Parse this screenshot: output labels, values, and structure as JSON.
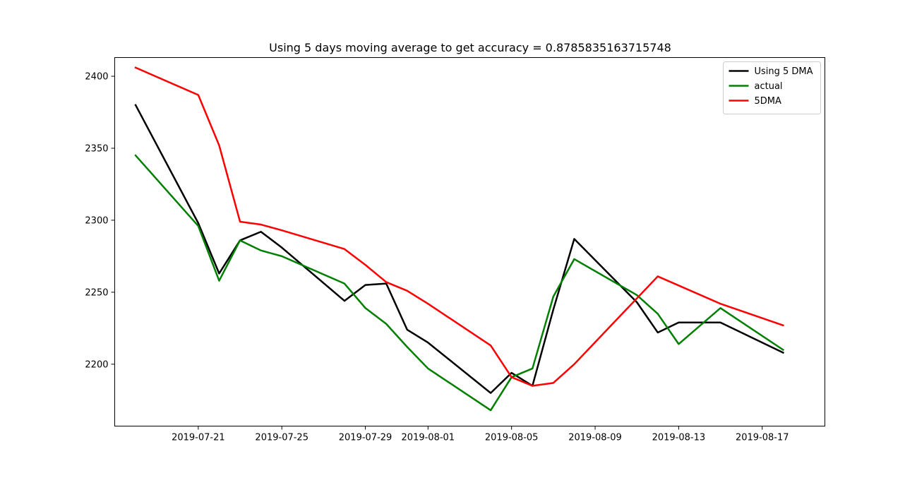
{
  "chart_data": {
    "type": "line",
    "title": "Using 5 days moving average to get accuracy = 0.8785835163715748",
    "xlabel": "",
    "ylabel": "",
    "xlim": [
      "2019-07-17",
      "2019-08-20"
    ],
    "ylim": [
      2157,
      2413
    ],
    "x_ticks": [
      "2019-07-21",
      "2019-07-25",
      "2019-07-29",
      "2019-08-01",
      "2019-08-05",
      "2019-08-09",
      "2019-08-13",
      "2019-08-17"
    ],
    "y_ticks": [
      2200,
      2250,
      2300,
      2350,
      2400
    ],
    "legend_position": "top-right",
    "grid": false,
    "series": [
      {
        "name": "Using 5 DMA",
        "color": "#000000",
        "points": [
          {
            "x": "2019-07-18",
            "y": 2380
          },
          {
            "x": "2019-07-21",
            "y": 2298
          },
          {
            "x": "2019-07-22",
            "y": 2263
          },
          {
            "x": "2019-07-23",
            "y": 2286
          },
          {
            "x": "2019-07-24",
            "y": 2292
          },
          {
            "x": "2019-07-25",
            "y": 2281
          },
          {
            "x": "2019-07-28",
            "y": 2244
          },
          {
            "x": "2019-07-29",
            "y": 2255
          },
          {
            "x": "2019-07-30",
            "y": 2256
          },
          {
            "x": "2019-07-31",
            "y": 2224
          },
          {
            "x": "2019-08-01",
            "y": 2215
          },
          {
            "x": "2019-08-04",
            "y": 2180
          },
          {
            "x": "2019-08-05",
            "y": 2194
          },
          {
            "x": "2019-08-06",
            "y": 2185
          },
          {
            "x": "2019-08-07",
            "y": 2238
          },
          {
            "x": "2019-08-08",
            "y": 2287
          },
          {
            "x": "2019-08-11",
            "y": 2243
          },
          {
            "x": "2019-08-12",
            "y": 2222
          },
          {
            "x": "2019-08-13",
            "y": 2229
          },
          {
            "x": "2019-08-15",
            "y": 2229
          },
          {
            "x": "2019-08-18",
            "y": 2208
          }
        ]
      },
      {
        "name": "actual",
        "color": "#008000",
        "points": [
          {
            "x": "2019-07-18",
            "y": 2345
          },
          {
            "x": "2019-07-21",
            "y": 2296
          },
          {
            "x": "2019-07-22",
            "y": 2258
          },
          {
            "x": "2019-07-23",
            "y": 2286
          },
          {
            "x": "2019-07-24",
            "y": 2279
          },
          {
            "x": "2019-07-25",
            "y": 2275
          },
          {
            "x": "2019-07-28",
            "y": 2256
          },
          {
            "x": "2019-07-29",
            "y": 2239
          },
          {
            "x": "2019-07-30",
            "y": 2228
          },
          {
            "x": "2019-07-31",
            "y": 2212
          },
          {
            "x": "2019-08-01",
            "y": 2197
          },
          {
            "x": "2019-08-04",
            "y": 2168
          },
          {
            "x": "2019-08-05",
            "y": 2191
          },
          {
            "x": "2019-08-06",
            "y": 2197
          },
          {
            "x": "2019-08-07",
            "y": 2247
          },
          {
            "x": "2019-08-08",
            "y": 2273
          },
          {
            "x": "2019-08-11",
            "y": 2248
          },
          {
            "x": "2019-08-12",
            "y": 2235
          },
          {
            "x": "2019-08-13",
            "y": 2214
          },
          {
            "x": "2019-08-15",
            "y": 2239
          },
          {
            "x": "2019-08-18",
            "y": 2210
          }
        ]
      },
      {
        "name": "5DMA",
        "color": "#ff0000",
        "points": [
          {
            "x": "2019-07-18",
            "y": 2406
          },
          {
            "x": "2019-07-21",
            "y": 2387
          },
          {
            "x": "2019-07-22",
            "y": 2352
          },
          {
            "x": "2019-07-23",
            "y": 2299
          },
          {
            "x": "2019-07-24",
            "y": 2297
          },
          {
            "x": "2019-07-25",
            "y": 2293
          },
          {
            "x": "2019-07-28",
            "y": 2280
          },
          {
            "x": "2019-07-29",
            "y": 2269
          },
          {
            "x": "2019-07-30",
            "y": 2257
          },
          {
            "x": "2019-07-31",
            "y": 2251
          },
          {
            "x": "2019-08-01",
            "y": 2242
          },
          {
            "x": "2019-08-04",
            "y": 2213
          },
          {
            "x": "2019-08-05",
            "y": 2191
          },
          {
            "x": "2019-08-06",
            "y": 2185
          },
          {
            "x": "2019-08-07",
            "y": 2187
          },
          {
            "x": "2019-08-08",
            "y": 2200
          },
          {
            "x": "2019-08-12",
            "y": 2261
          },
          {
            "x": "2019-08-15",
            "y": 2242
          },
          {
            "x": "2019-08-18",
            "y": 2227
          }
        ]
      }
    ]
  }
}
